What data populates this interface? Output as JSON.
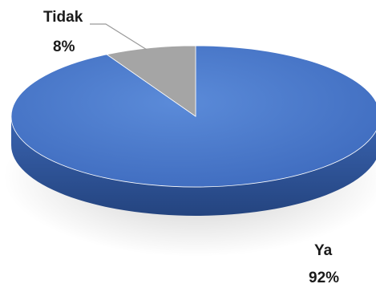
{
  "chart_data": {
    "type": "pie",
    "style": "3d",
    "slices": [
      {
        "label": "Ya",
        "percent_label": "92%",
        "value": 92,
        "color": "#4472c4"
      },
      {
        "label": "Tidak",
        "percent_label": "8%",
        "value": 8,
        "color": "#a5a5a5"
      }
    ],
    "title": "",
    "legend": "none",
    "data_labels": "outside"
  }
}
